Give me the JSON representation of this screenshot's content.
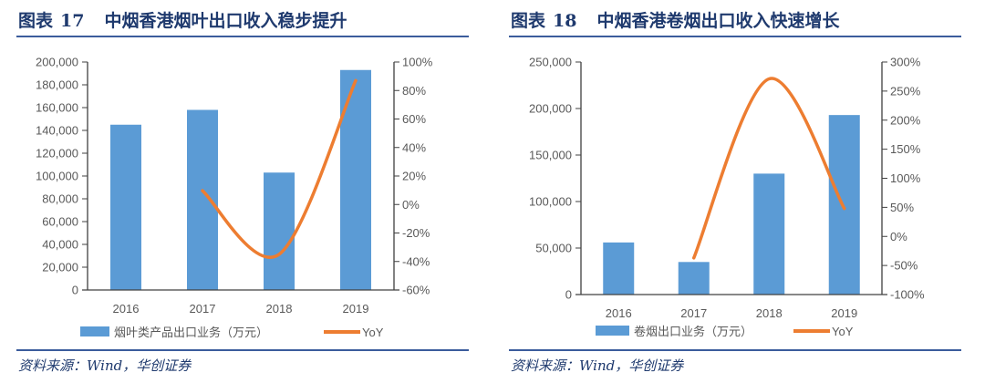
{
  "chart_data": [
    {
      "type": "bar",
      "figure_label": "图表",
      "figure_number": "17",
      "title": "中烟香港烟叶出口收入稳步提升",
      "categories": [
        "2016",
        "2017",
        "2018",
        "2019"
      ],
      "series": [
        {
          "name": "烟叶类产品出口业务（万元）",
          "type": "bar",
          "axis": "left",
          "values": [
            145000,
            158000,
            103000,
            193000
          ],
          "color": "#5b9bd5"
        },
        {
          "name": "YoY",
          "type": "line",
          "axis": "right",
          "values": [
            null,
            9.7,
            -35,
            87
          ],
          "color": "#ed7d31"
        }
      ],
      "y_left": {
        "range": [
          0,
          200000
        ],
        "ticks": [
          "0",
          "20,000",
          "40,000",
          "60,000",
          "80,000",
          "100,000",
          "120,000",
          "140,000",
          "160,000",
          "180,000",
          "200,000"
        ]
      },
      "y_right": {
        "range": [
          -60,
          100
        ],
        "ticks": [
          "-60%",
          "-40%",
          "-20%",
          "0%",
          "20%",
          "40%",
          "60%",
          "80%",
          "100%"
        ]
      },
      "grid": false,
      "legend": "bottom",
      "source": "资料来源：Wind，华创证券"
    },
    {
      "type": "bar",
      "figure_label": "图表",
      "figure_number": "18",
      "title": "中烟香港卷烟出口收入快速增长",
      "categories": [
        "2016",
        "2017",
        "2018",
        "2019"
      ],
      "series": [
        {
          "name": "卷烟出口业务（万元）",
          "type": "bar",
          "axis": "left",
          "values": [
            56000,
            35000,
            130000,
            193000
          ],
          "color": "#5b9bd5"
        },
        {
          "name": "YoY",
          "type": "line",
          "axis": "right",
          "values": [
            null,
            -37,
            271,
            48
          ],
          "color": "#ed7d31"
        }
      ],
      "y_left": {
        "range": [
          0,
          250000
        ],
        "ticks": [
          "0",
          "50,000",
          "100,000",
          "150,000",
          "200,000",
          "250,000"
        ]
      },
      "y_right": {
        "range": [
          -100,
          300
        ],
        "ticks": [
          "-100%",
          "-50%",
          "0%",
          "50%",
          "100%",
          "150%",
          "200%",
          "250%",
          "300%"
        ]
      },
      "grid": false,
      "legend": "bottom",
      "source": "资料来源：Wind，华创证券"
    }
  ]
}
